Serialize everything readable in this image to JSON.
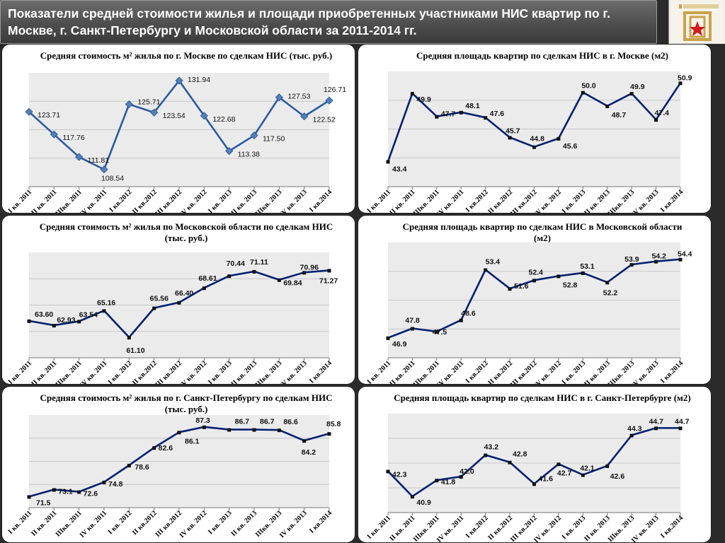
{
  "page": {
    "title": "Показатели средней стоимости жилья и площади приобретенных участниками НИС квартир по г. Москве, г. Санкт-Петербургу и Московской области за 2011-2014 гг."
  },
  "colors": {
    "header_bg": "#4e4e4e",
    "line_blue_series": "#002070",
    "marker_blue": "#4f81bd",
    "plot_bg": "#e6e6e6"
  },
  "chart_data": [
    {
      "id": "moscow-price",
      "type": "line",
      "title": "Средняя стоимость м² жилья по  г. Москве по сделкам НИС (тыс. руб.)",
      "categories": [
        "I кв. 2011",
        "II кв. 2011",
        "IIIкв. 2011",
        "IV кв. 2011",
        "I кв.2012",
        "II кв.2012",
        "III кв.2012",
        "IV кв. 2012",
        "I кв. 2013",
        "II кв. 2013",
        "IIIкв. 2013",
        "IV кв. 2013",
        "I кв.2014"
      ],
      "values": [
        123.71,
        117.76,
        111.81,
        108.54,
        125.71,
        123.54,
        131.94,
        122.68,
        113.38,
        117.5,
        127.53,
        122.52,
        126.71
      ],
      "labels": [
        "123.71",
        "117.76",
        "111.81",
        "108.54",
        "125.71",
        "123.54",
        "131.94",
        "122.68",
        "113.38",
        "117.50",
        "127.53",
        "122.52",
        "126.71"
      ],
      "ylim": [
        104,
        134
      ],
      "marker": "diamond",
      "line_color": "#2c5aa0",
      "grid": true
    },
    {
      "id": "moscow-area",
      "type": "line",
      "title": "Средняя площадь квартир по сделкам НИС в г. Москве (м2)",
      "categories": [
        "I кв. 2011",
        "II кв. 2011",
        "IIIкв. 2011",
        "IV кв. 2011",
        "I кв.2012",
        "II кв.2012",
        "III кв.2012",
        "IV кв. 2012",
        "I кв. 2013",
        "II кв. 2013",
        "IIIкв. 2013",
        "IV кв. 2013",
        "I кв.2014"
      ],
      "values": [
        43.4,
        49.9,
        47.7,
        48.1,
        47.6,
        45.7,
        44.8,
        45.6,
        50.0,
        48.7,
        49.9,
        47.4,
        50.9
      ],
      "labels": [
        "43.4",
        "49.9",
        "47.7",
        "48.1",
        "47.6",
        "45.7",
        "44.8",
        "45.6",
        "50.0",
        "48.7",
        "49.9",
        "47.4",
        "50.9"
      ],
      "ylim": [
        41,
        52
      ],
      "marker": "square",
      "line_color": "#002070",
      "grid": true
    },
    {
      "id": "mo-price",
      "type": "line",
      "title": "Средняя стоимость м² жилья по  Московской области по сделкам НИС   (тыс. руб.)",
      "categories": [
        "I кв. 2011",
        "II кв. 2011",
        "IIIкв. 2011",
        "IV кв. 2011",
        "I кв. 2012",
        "II кв.2012",
        "III кв.2012",
        "IV кв. 2012",
        "I кв. 2013",
        "II кв. 2013",
        "IIIкв. 2013",
        "IV кв. 2013",
        "I кв.2014"
      ],
      "values": [
        63.6,
        62.93,
        63.54,
        65.16,
        61.1,
        65.56,
        66.4,
        68.61,
        70.44,
        71.11,
        69.84,
        70.96,
        71.27
      ],
      "labels": [
        "63.60",
        "62.93",
        "63.54",
        "65.16",
        "61.10",
        "65.56",
        "66.40",
        "68.61",
        "70.44",
        "71.11",
        "69.84",
        "70.96",
        "71.27"
      ],
      "ylim": [
        58,
        74
      ],
      "marker": "square",
      "line_color": "#002070",
      "grid": true
    },
    {
      "id": "mo-area",
      "type": "line",
      "title": "Средняя площадь квартир по сделкам НИС в Московской области (м2)",
      "categories": [
        "I кв. 2011",
        "II кв. 2011",
        "IIIкв. 2011",
        "IV кв. 2011",
        "I кв.2012",
        "II кв.2012",
        "III кв.2012",
        "IV кв. 2012",
        "I кв. 2013",
        "II кв. 2013",
        "IIIкв. 2013",
        "IV кв. 2013",
        "I кв.2014"
      ],
      "values": [
        46.9,
        47.8,
        47.5,
        48.6,
        53.4,
        51.6,
        52.4,
        52.8,
        53.1,
        52.2,
        53.9,
        54.2,
        54.4
      ],
      "labels": [
        "46.9",
        "47.8",
        "47.5",
        "48.6",
        "53.4",
        "51.6",
        "52.4",
        "52.8",
        "53.1",
        "52.2",
        "53.9",
        "54.2",
        "54.4"
      ],
      "ylim": [
        45,
        56
      ],
      "marker": "square",
      "line_color": "#002070",
      "grid": true
    },
    {
      "id": "spb-price",
      "type": "line",
      "title": "Средняя стоимость м² жилья по  г. Санкт-Петербургу по сделкам НИС   (тыс. руб.)",
      "categories": [
        "I кв. 2011",
        "II кв. 2011",
        "IIIкв. 2011",
        "IV кв. 2011",
        "I кв. 2012",
        "II кв.2012",
        "III кв.2012",
        "IV кв. 2012",
        "I кв. 2013",
        "II кв. 2013",
        "IIIкв. 2013",
        "IV кв. 2013",
        "I кв.2014"
      ],
      "values": [
        71.5,
        73.1,
        72.6,
        74.8,
        78.6,
        82.6,
        86.1,
        87.3,
        86.7,
        86.7,
        86.6,
        84.2,
        85.8
      ],
      "labels": [
        "71.5",
        "73.1",
        "72.6",
        "74.8",
        "78.6",
        "82.6",
        "86.1",
        "87.3",
        "86.7",
        "86.7",
        "86.6",
        "84.2",
        "85.8"
      ],
      "ylim": [
        69,
        90
      ],
      "marker": "square",
      "line_color": "#002070",
      "grid": true
    },
    {
      "id": "spb-area",
      "type": "line",
      "title": "Средняя площадь квартир по сделкам НИС в г. Санкт-Петербурге (м2)",
      "categories": [
        "I кв. 2011",
        "II кв. 2011",
        "IIIкв. 2011",
        "IV кв. 2011",
        "I кв.2012",
        "II кв.2012",
        "III кв.2012",
        "IV кв. 2012",
        "I кв. 2013",
        "II кв. 2013",
        "IIIкв. 2013",
        "IV кв. 2013",
        "I кв.2014"
      ],
      "values": [
        42.3,
        40.9,
        41.8,
        42.0,
        43.2,
        42.8,
        41.6,
        42.7,
        42.1,
        42.6,
        44.3,
        44.7,
        44.7
      ],
      "labels": [
        "42.3",
        "40.9",
        "41.8",
        "42.0",
        "43.2",
        "42.8",
        "41.6",
        "42.7",
        "42.1",
        "42.6",
        "44.3",
        "44.7",
        "44.7"
      ],
      "ylim": [
        40,
        45.5
      ],
      "marker": "square",
      "line_color": "#002070",
      "grid": true
    }
  ]
}
